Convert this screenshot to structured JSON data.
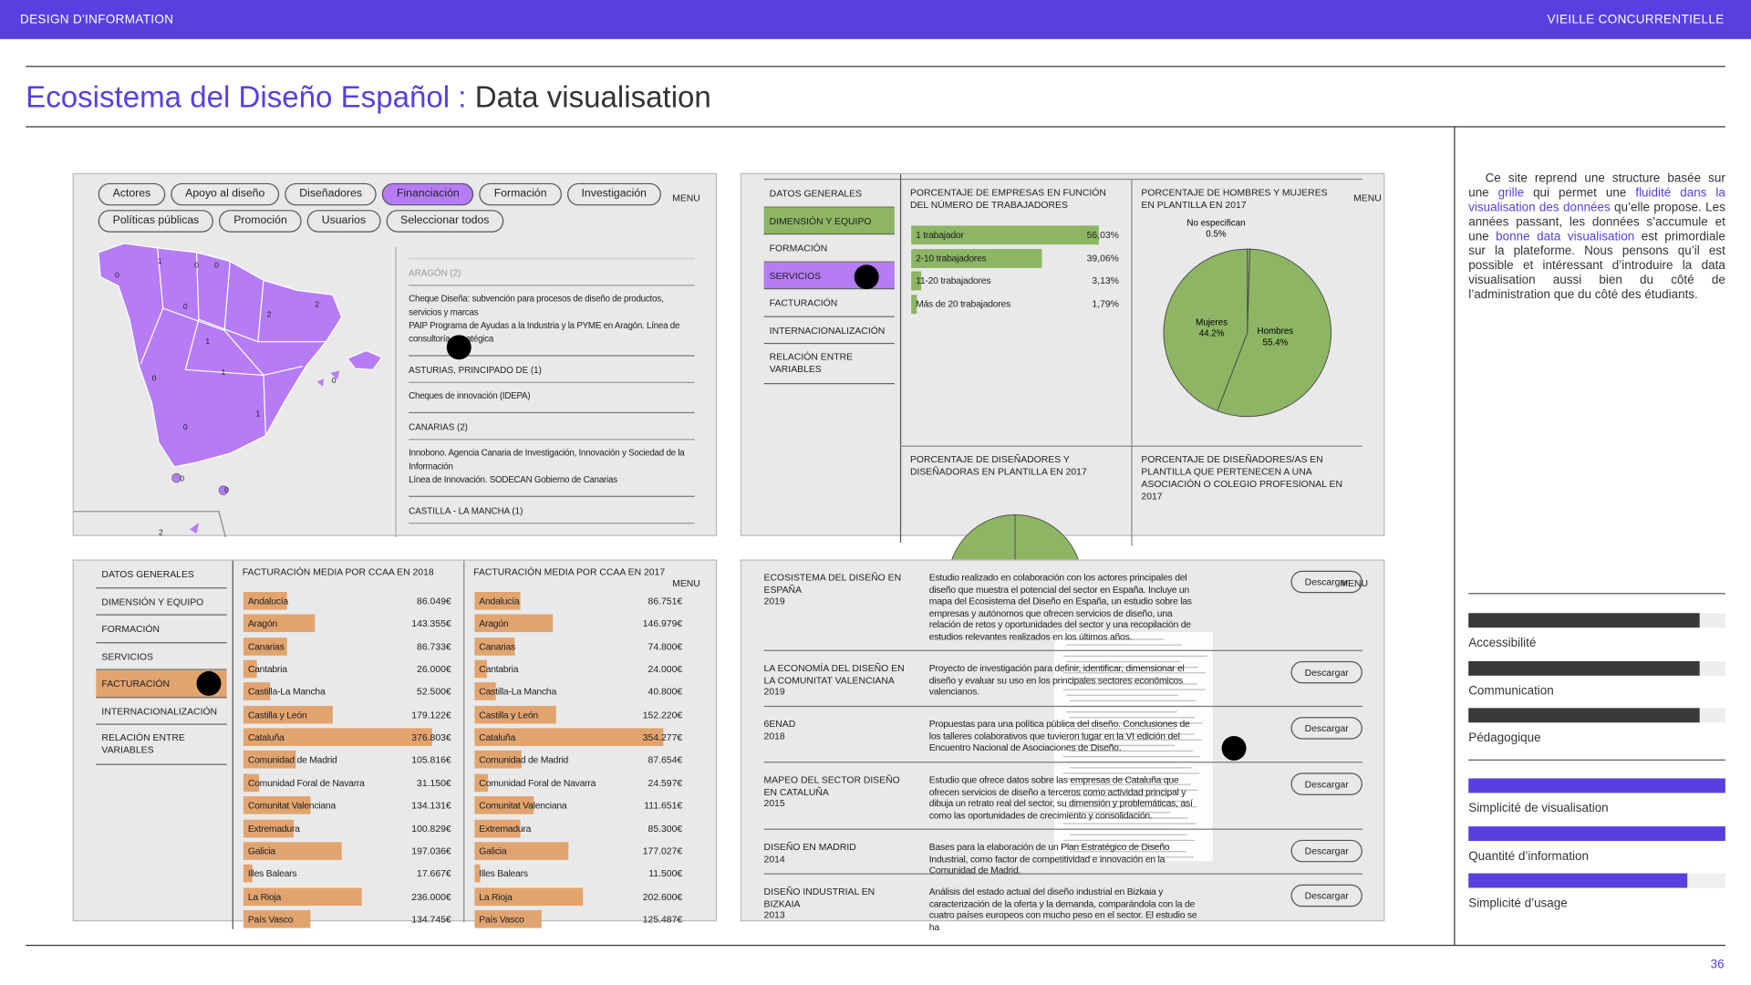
{
  "header": {
    "left": "DESIGN D'INFORMATION",
    "right": "VIEILLE CONCURRENTIELLE"
  },
  "title": {
    "accent": "Ecosistema del Diseño Español :",
    "rest": "Data visualisation"
  },
  "page_number": "36",
  "menu_label": "MENU",
  "download_label": "Descargar",
  "nav_items": [
    "DATOS GENERALES",
    "DIMENSIÓN Y EQUIPO",
    "FORMACIÓN",
    "SERVICIOS",
    "FACTURACIÓN",
    "INTERNACIONALIZACIÓN",
    "RELACIÓN ENTRE VARIABLES"
  ],
  "map_panel": {
    "filters": [
      "Actores",
      "Apoyo al diseño",
      "Diseñadores",
      "Financiación",
      "Formación",
      "Investigación",
      "Políticas públicas",
      "Promoción",
      "Usuarios",
      "Seleccionar todos"
    ],
    "active_filter": 3,
    "map_labels": [
      "1",
      "0",
      "0",
      "0",
      "0",
      "2",
      "2",
      "1",
      "1",
      "0",
      "1",
      "0",
      "0",
      "0",
      "0",
      "2"
    ],
    "list": [
      {
        "heading": "ARAGÓN (2)",
        "items": [
          "Cheque Diseña: subvención para procesos de diseño de productos, servicios y marcas",
          "PAIP Programa de Ayudas a la Industria y la PYME en Aragón. Línea de consultoría estratégica"
        ]
      },
      {
        "heading": "ASTURIAS, PRINCIPADO DE (1)",
        "items": [
          "Cheques de innovación (IDEPA)"
        ]
      },
      {
        "heading": "CANARIAS (2)",
        "items": [
          "Innobono. Agencia Canaria de Investigación, Innovación y Sociedad de la Información",
          "Línea de Innovación. SODECAN Gobierno de Canarias"
        ]
      },
      {
        "heading": "CASTILLA - LA MANCHA (1)",
        "items": []
      }
    ]
  },
  "workforce_panel": {
    "active_item": 1,
    "hover_item": 3,
    "workers_chart": {
      "type": "bar",
      "title": "PORCENTAJE DE EMPRESAS EN FUNCIÓN DEL NÚMERO DE TRABAJADORES",
      "categories": [
        "1 trabajador",
        "2-10 trabajadores",
        "11-20 trabajadores",
        "Más de 20 trabajadores"
      ],
      "values": [
        56.03,
        39.06,
        3.13,
        1.79
      ],
      "value_labels": [
        "56,03%",
        "39,06%",
        "3,13%",
        "1,79%"
      ],
      "color": "#8db564"
    },
    "gender_chart": {
      "type": "pie",
      "title": "PORCENTAJE DE HOMBRES Y MUJERES EN PLANTILLA EN 2017",
      "categories": [
        "No especifican",
        "Hombres",
        "Mujeres"
      ],
      "values": [
        0.5,
        55.4,
        44.2
      ],
      "value_labels": [
        "0.5%",
        "55.4%",
        "44.2%"
      ],
      "color": "#8db564"
    },
    "more_titles": [
      "PORCENTAJE DE DISEÑADORES Y DISEÑADORAS EN PLANTILLA EN 2017",
      "PORCENTAJE DE DISEÑADORES/AS EN PLANTILLA QUE PERTENECEN A UNA ASOCIACIÓN O COLEGIO PROFESIONAL EN 2017"
    ]
  },
  "revenue_panel": {
    "active_item": 4,
    "charts": [
      {
        "type": "bar",
        "title": "FACTURACIÓN MEDIA POR CCAA EN 2018",
        "categories": [
          "Andalucía",
          "Aragón",
          "Canarias",
          "Cantabria",
          "Castilla-La Mancha",
          "Castilla y León",
          "Cataluña",
          "Comunidad de Madrid",
          "Comunidad Foral de Navarra",
          "Comunitat Valenciana",
          "Extremadura",
          "Galicia",
          "Illes Balears",
          "La Rioja",
          "País Vasco"
        ],
        "values": [
          86049,
          143355,
          86733,
          26000,
          52500,
          179122,
          376803,
          105816,
          31150,
          134131,
          100829,
          197036,
          17667,
          236000,
          134745
        ],
        "value_labels": [
          "86.049€",
          "143.355€",
          "86.733€",
          "26.000€",
          "52.500€",
          "179.122€",
          "376.803€",
          "105.816€",
          "31.150€",
          "134.131€",
          "100.829€",
          "197.036€",
          "17.667€",
          "236.000€",
          "134.745€"
        ],
        "color": "#e2a46f"
      },
      {
        "type": "bar",
        "title": "FACTURACIÓN MEDIA POR CCAA EN 2017",
        "categories": [
          "Andalucía",
          "Aragón",
          "Canarias",
          "Cantabria",
          "Castilla-La Mancha",
          "Castilla y León",
          "Cataluña",
          "Comunidad de Madrid",
          "Comunidad Foral de Navarra",
          "Comunitat Valenciana",
          "Extremadura",
          "Galicia",
          "Illes Balears",
          "La Rioja",
          "País Vasco"
        ],
        "values": [
          86751,
          146979,
          74800,
          24000,
          40800,
          152220,
          354277,
          87654,
          24597,
          111651,
          85300,
          177027,
          11500,
          202600,
          125487
        ],
        "value_labels": [
          "86.751€",
          "146.979€",
          "74.800€",
          "24.000€",
          "40.800€",
          "152.220€",
          "354.277€",
          "87.654€",
          "24.597€",
          "111.651€",
          "85.300€",
          "177.027€",
          "11.500€",
          "202.600€",
          "125.487€"
        ],
        "color": "#e2a46f"
      }
    ]
  },
  "studies_panel": {
    "studies": [
      {
        "title": "ECOSISTEMA DEL DISEÑO EN ESPAÑA",
        "year": "2019",
        "description": "Estudio realizado en colaboración con los actores principales del diseño que muestra el potencial del sector en España. Incluye un mapa del Ecosistema del Diseño en España, un estudio sobre las empresas y autónomos que ofrecen servicios de diseño, una relación de retos y oportunidades del sector y una recopilación de estudios relevantes realizados en los últimos años."
      },
      {
        "title": "LA ECONOMÍA DEL DISEÑO EN LA COMUNITAT VALENCIANA",
        "year": "2019",
        "description": "Proyecto de investigación para definir, identificar, dimensionar el diseño y evaluar su uso en los principales sectores económicos valencianos."
      },
      {
        "title": "6ENAD",
        "year": "2018",
        "description": "Propuestas para una política pública del diseño. Conclusiones de los talleres colaborativos que tuvieron lugar en la VI edición del Encuentro Nacional de Asociaciones de Diseño."
      },
      {
        "title": "MAPEO DEL SECTOR DISEÑO EN CATALUÑA",
        "year": "2015",
        "description": "Estudio que ofrece datos sobre las empresas de Cataluña que ofrecen servicios de diseño a terceros como actividad principal y dibuja un retrato real del sector, su dimensión y problemáticas, así como las oportunidades de crecimiento y consolidación."
      },
      {
        "title": "DISEÑO EN MADRID",
        "year": "2014",
        "description": "Bases para la elaboración de un Plan Estratégico de Diseño Industrial, como factor de competitividad e innovación en la Comunidad de Madrid."
      },
      {
        "title": "DISEÑO INDUSTRIAL EN BIZKAIA",
        "year": "2013",
        "description": "Análisis del estado actual del diseño industrial en Bizkaia y caracterización de la oferta y la demanda, comparándola con la de cuatro países europeos con mucho peso en el sector. El estudio se ha"
      }
    ]
  },
  "sidebar": {
    "paragraph": [
      {
        "text": "Ce site reprend une structure basée sur une",
        "accent": false
      },
      {
        "text": "grille",
        "accent": true
      },
      {
        "text": "qui permet une",
        "accent": false
      },
      {
        "text": "fluidité dans la visualisation des données",
        "accent": true
      },
      {
        "text": "qu’elle propose. Les années passant, les données s’accumule et une",
        "accent": false
      },
      {
        "text": "bonne data visualisation",
        "accent": true
      },
      {
        "text": "est primordiale sur la plateforme. Nous pensons qu’il est possible et intéressant d’introduire la data visualisation aussi bien du côté de l’administration que du côté des étudiants.",
        "accent": false
      }
    ],
    "ratings": [
      {
        "label": "Accessibilité",
        "value": 0.9,
        "color": "#393939"
      },
      {
        "label": "Communication",
        "value": 0.9,
        "color": "#393939"
      },
      {
        "label": "Pédagogique",
        "value": 0.9,
        "color": "#393939"
      },
      {
        "label": "Simplicité de visualisation",
        "value": 1.0,
        "color": "#5a3ee0"
      },
      {
        "label": "Quantité d’information",
        "value": 1.0,
        "color": "#5a3ee0"
      },
      {
        "label": "Simplicité d’usage",
        "value": 0.85,
        "color": "#5a3ee0"
      }
    ]
  }
}
